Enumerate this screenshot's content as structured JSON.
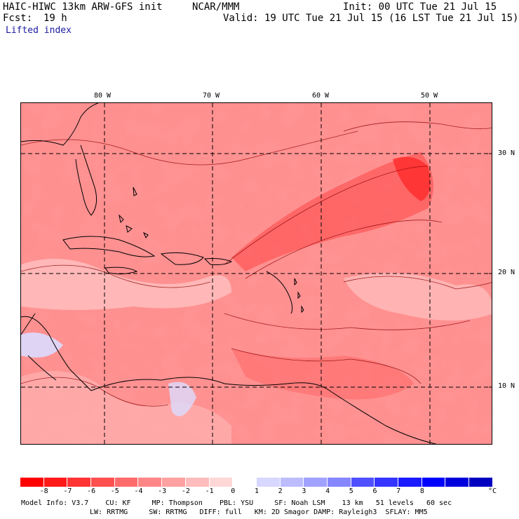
{
  "header": {
    "model": "HAIC-HIWC 13km ARW-GFS init",
    "org": "NCAR/MMM",
    "init": "Init: 00 UTC Tue 21 Jul 15",
    "fcst_label": "Fcst:",
    "fcst_value": "19 h",
    "valid": "Valid: 19 UTC Tue 21 Jul 15 (16 LST Tue 21 Jul 15)",
    "field": "Lifted index"
  },
  "map": {
    "lon_labels": [
      "80 W",
      "70 W",
      "60 W",
      "50 W"
    ],
    "lat_labels": [
      "30 N",
      "20 N",
      "10 N"
    ],
    "colors": {
      "land_outline": "#000000",
      "contour": "#8b0000",
      "grid": "#000000"
    }
  },
  "colorbar": {
    "labels": [
      "-8",
      "-7",
      "-6",
      "-5",
      "-4",
      "-3",
      "-2",
      "-1",
      "0",
      "1",
      "2",
      "3",
      "4",
      "5",
      "6",
      "7",
      "8"
    ],
    "unit": "°C",
    "colors": [
      "#ff0000",
      "#ff1a1a",
      "#ff3535",
      "#ff5050",
      "#ff6b6b",
      "#ff8686",
      "#ffa1a1",
      "#ffbcbc",
      "#ffd7d7",
      "#ffffff",
      "#d7d7ff",
      "#bcbcff",
      "#a1a1ff",
      "#8686ff",
      "#5050ff",
      "#3535ff",
      "#1a1aff",
      "#0000ff",
      "#0000dd",
      "#0000c0"
    ]
  },
  "footer": {
    "line1": "Model Info: V3.7    CU: KF     MP: Thompson    PBL: YSU     SF: Noah LSM    13 km   51 levels   60 sec",
    "line2": "LW: RRTMG     SW: RRTMG   DIFF: full   KM: 2D Smagor DAMP: Rayleigh3  SFLAY: MM5"
  }
}
